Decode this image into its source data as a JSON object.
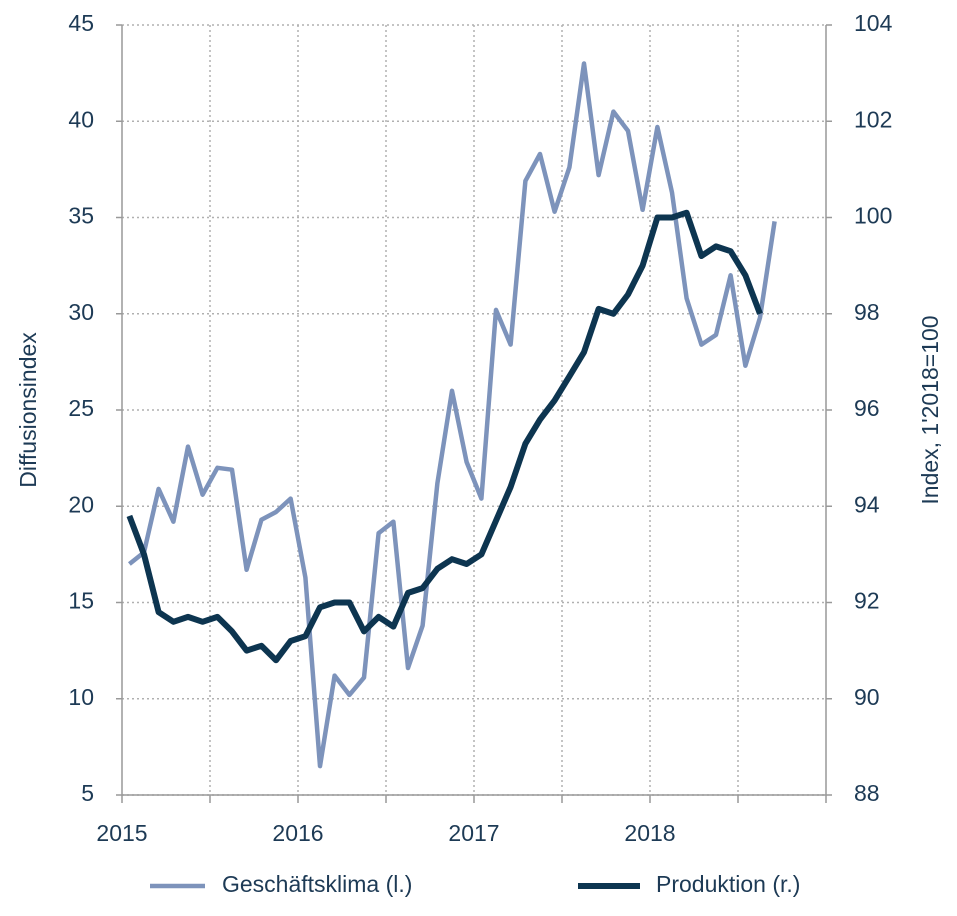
{
  "chart_data": {
    "type": "line",
    "x": [
      2015.042,
      2015.125,
      2015.208,
      2015.292,
      2015.375,
      2015.458,
      2015.542,
      2015.625,
      2015.708,
      2015.792,
      2015.875,
      2015.958,
      2016.042,
      2016.125,
      2016.208,
      2016.292,
      2016.375,
      2016.458,
      2016.542,
      2016.625,
      2016.708,
      2016.792,
      2016.875,
      2016.958,
      2017.042,
      2017.125,
      2017.208,
      2017.292,
      2017.375,
      2017.458,
      2017.542,
      2017.625,
      2017.708,
      2017.792,
      2017.875,
      2017.958,
      2018.042,
      2018.125,
      2018.208,
      2018.292,
      2018.375,
      2018.458,
      2018.542,
      2018.625,
      2018.708
    ],
    "series": [
      {
        "name": "Geschäftsklima (l.)",
        "color": "#7d93bb",
        "axis": "y",
        "values": [
          17.0,
          17.6,
          20.9,
          19.2,
          23.1,
          20.6,
          22.0,
          21.9,
          16.7,
          19.3,
          19.7,
          20.4,
          16.3,
          6.5,
          11.2,
          10.2,
          11.1,
          18.6,
          19.2,
          11.6,
          13.8,
          21.2,
          26.0,
          22.3,
          20.4,
          30.2,
          28.4,
          36.9,
          38.3,
          35.3,
          37.6,
          43.0,
          37.2,
          40.5,
          39.5,
          35.4,
          39.7,
          36.3,
          30.8,
          28.4,
          28.9,
          32.0,
          27.3,
          29.8,
          34.8
        ]
      },
      {
        "name": "Produktion (r.)",
        "color": "#0d3550",
        "axis": "y2",
        "values": [
          93.8,
          93.0,
          91.8,
          91.6,
          91.7,
          91.6,
          91.7,
          91.4,
          91.0,
          91.1,
          90.8,
          91.2,
          91.3,
          91.9,
          92.0,
          92.0,
          91.4,
          91.7,
          91.5,
          92.2,
          92.3,
          92.7,
          92.9,
          92.8,
          93.0,
          93.7,
          94.4,
          95.3,
          95.8,
          96.2,
          96.7,
          97.2,
          98.1,
          98.0,
          98.4,
          99.0,
          100.0,
          100.0,
          100.1,
          99.2,
          99.4,
          99.3,
          98.8,
          98.0,
          null
        ]
      }
    ],
    "ylabel": "Diffusionsindex",
    "y2label": "Index, 1'2018=100",
    "xlim": [
      2015,
      2019
    ],
    "xticks": [
      2015,
      2016,
      2017,
      2018
    ],
    "x_minor_ticks": [
      2015.5,
      2016.5,
      2017.5,
      2018.5,
      2019
    ],
    "ylim": [
      5,
      45
    ],
    "yticks": [
      5,
      10,
      15,
      20,
      25,
      30,
      35,
      40,
      45
    ],
    "y2lim": [
      88,
      104
    ],
    "y2ticks": [
      88,
      90,
      92,
      94,
      96,
      98,
      100,
      102,
      104
    ],
    "grid": true,
    "legend": "bottom"
  }
}
